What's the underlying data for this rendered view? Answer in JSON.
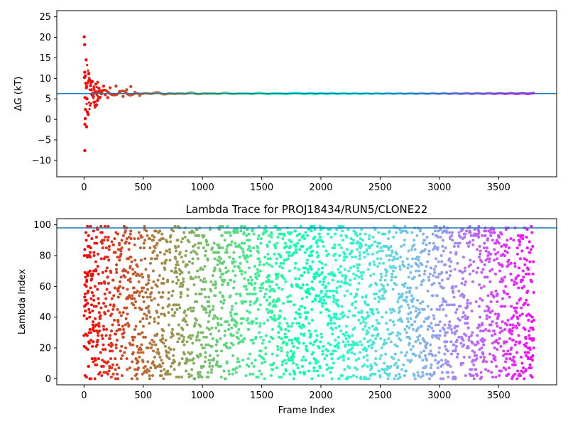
{
  "chart_data": [
    {
      "type": "scatter",
      "title": "",
      "xlabel": "",
      "ylabel": "ΔG (kT)",
      "xlim": [
        -230,
        3990
      ],
      "ylim": [
        -14,
        26.5
      ],
      "xticks": [
        0,
        500,
        1000,
        1500,
        2000,
        2500,
        3000,
        3500
      ],
      "yticks": [
        -10,
        -5,
        0,
        5,
        10,
        15,
        20,
        25
      ],
      "hline": 6.3,
      "colormap": "rainbow",
      "colormap_reverse": true,
      "converged_value": 6.3,
      "num_frames": 3800,
      "early_points": [
        {
          "x": 2,
          "y": 20.1
        },
        {
          "x": 5,
          "y": 18.2
        },
        {
          "x": 18,
          "y": 14.5
        },
        {
          "x": 6,
          "y": 11.5
        },
        {
          "x": 4,
          "y": 10.2
        },
        {
          "x": 10,
          "y": 10.6
        },
        {
          "x": 15,
          "y": 8.8
        },
        {
          "x": 20,
          "y": 7.7
        },
        {
          "x": 8,
          "y": 5.3
        },
        {
          "x": 25,
          "y": 5.0
        },
        {
          "x": 12,
          "y": 2.4
        },
        {
          "x": 28,
          "y": 1.8
        },
        {
          "x": 35,
          "y": 1.2
        },
        {
          "x": 10,
          "y": 0.2
        },
        {
          "x": 7,
          "y": -1.2
        },
        {
          "x": 22,
          "y": -1.8
        },
        {
          "x": 6,
          "y": -7.6
        },
        {
          "x": 40,
          "y": 11.2
        },
        {
          "x": 48,
          "y": 9.6
        },
        {
          "x": 55,
          "y": 8.2
        },
        {
          "x": 62,
          "y": 7.2
        },
        {
          "x": 70,
          "y": 9.2
        },
        {
          "x": 78,
          "y": 5.6
        },
        {
          "x": 85,
          "y": 4.2
        },
        {
          "x": 92,
          "y": 3.4
        },
        {
          "x": 100,
          "y": 8.6
        },
        {
          "x": 108,
          "y": 6.6
        },
        {
          "x": 115,
          "y": 4.6
        },
        {
          "x": 125,
          "y": 7.6
        },
        {
          "x": 135,
          "y": 5.4
        },
        {
          "x": 150,
          "y": 6.9
        },
        {
          "x": 165,
          "y": 8.1
        },
        {
          "x": 180,
          "y": 6.0
        },
        {
          "x": 200,
          "y": 5.3
        },
        {
          "x": 220,
          "y": 7.7
        },
        {
          "x": 245,
          "y": 6.1
        },
        {
          "x": 270,
          "y": 8.1
        },
        {
          "x": 300,
          "y": 6.8
        },
        {
          "x": 330,
          "y": 5.6
        },
        {
          "x": 360,
          "y": 7.2
        },
        {
          "x": 395,
          "y": 8.0
        },
        {
          "x": 430,
          "y": 6.6
        },
        {
          "x": 470,
          "y": 5.8
        }
      ]
    },
    {
      "type": "scatter",
      "title": "Lambda Trace for PROJ18434/RUN5/CLONE22",
      "xlabel": "Frame Index",
      "ylabel": "Lambda Index",
      "xlim": [
        -230,
        3990
      ],
      "ylim": [
        -4,
        104
      ],
      "xticks": [
        0,
        500,
        1000,
        1500,
        2000,
        2500,
        3000,
        3500
      ],
      "yticks": [
        0,
        20,
        40,
        60,
        80,
        100
      ],
      "hline": 98,
      "colormap": "rainbow",
      "colormap_reverse": true,
      "num_frames": 3800,
      "lambda_range": [
        0,
        99
      ],
      "density_note": "sampled frames"
    }
  ]
}
